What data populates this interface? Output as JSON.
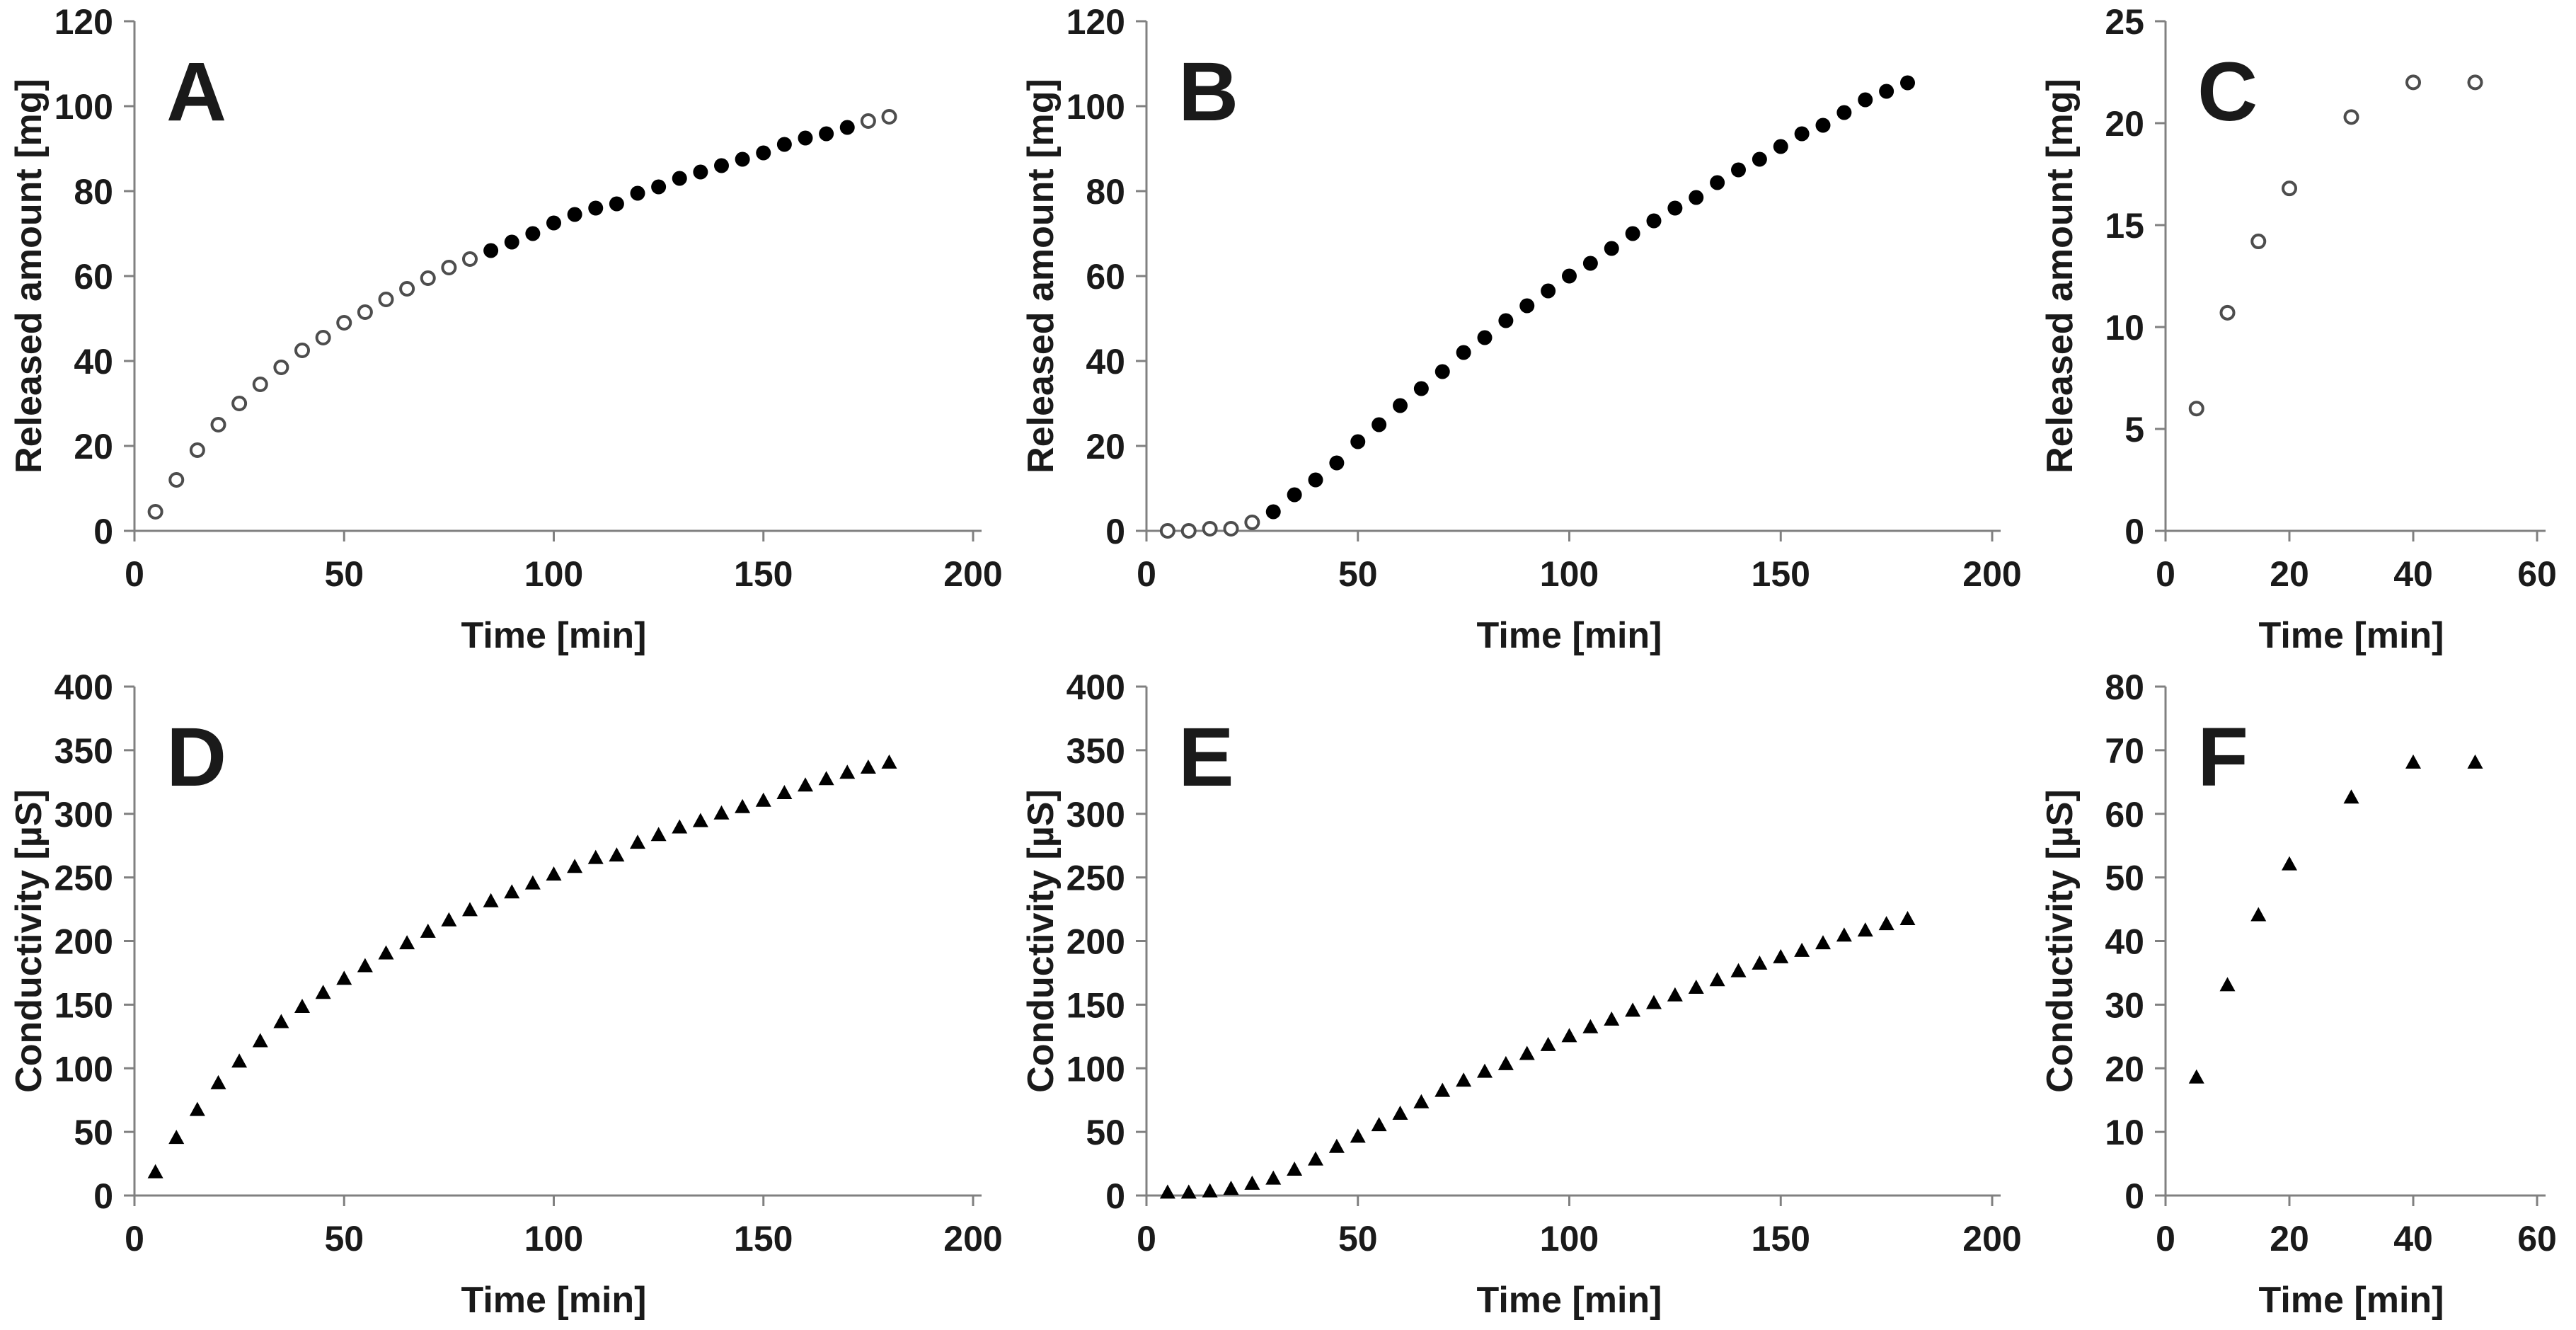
{
  "figure": {
    "name": "six-panel-release-conductivity-figure",
    "background": "#ffffff",
    "marker_color": "#000000",
    "open_marker_stroke": "#4d4d4d",
    "axis_color": "#808080",
    "text_color": "#1a1a1a"
  },
  "chart_data": [
    {
      "type": "scatter",
      "panel_label": "A",
      "title": "",
      "xlabel": "Time [min]",
      "ylabel": "Released amount [mg]",
      "xlim": [
        0,
        200
      ],
      "ylim": [
        0,
        120
      ],
      "xticks": [
        0,
        50,
        100,
        150,
        200
      ],
      "yticks": [
        0,
        20,
        40,
        60,
        80,
        100,
        120
      ],
      "grid": false,
      "legend": "none",
      "series": [
        {
          "name": "released-open-early",
          "marker": "circle-open",
          "x": [
            5,
            10,
            15,
            20,
            25,
            30,
            35,
            40,
            45,
            50,
            55,
            60,
            65,
            70,
            75,
            80
          ],
          "y": [
            4.5,
            12,
            19,
            25,
            30,
            34.5,
            38.5,
            42.5,
            45.5,
            49,
            51.5,
            54.5,
            57,
            59.5,
            62,
            64
          ]
        },
        {
          "name": "released-filled-mid",
          "marker": "circle-filled",
          "x": [
            85,
            90,
            95,
            100,
            105,
            110,
            115,
            120,
            125,
            130,
            135,
            140,
            145,
            150,
            155,
            160,
            165,
            170
          ],
          "y": [
            66,
            68,
            70,
            72.5,
            74.5,
            76,
            77,
            79.5,
            81,
            83,
            84.5,
            86,
            87.5,
            89,
            91,
            92.5,
            93.5,
            95
          ]
        },
        {
          "name": "released-open-late",
          "marker": "circle-open",
          "x": [
            175,
            180
          ],
          "y": [
            96.5,
            97.5
          ]
        }
      ]
    },
    {
      "type": "scatter",
      "panel_label": "B",
      "title": "",
      "xlabel": "Time [min]",
      "ylabel": "Released amount [mg]",
      "xlim": [
        0,
        200
      ],
      "ylim": [
        0,
        120
      ],
      "xticks": [
        0,
        50,
        100,
        150,
        200
      ],
      "yticks": [
        0,
        20,
        40,
        60,
        80,
        100,
        120
      ],
      "grid": false,
      "legend": "none",
      "series": [
        {
          "name": "released-open-lag",
          "marker": "circle-open",
          "x": [
            5,
            10,
            15,
            20,
            25
          ],
          "y": [
            0,
            0,
            0.5,
            0.5,
            2
          ]
        },
        {
          "name": "released-filled-rise",
          "marker": "circle-filled",
          "x": [
            30,
            35,
            40,
            45,
            50,
            55,
            60,
            65,
            70,
            75,
            80,
            85,
            90,
            95,
            100,
            105,
            110,
            115,
            120,
            125,
            130,
            135,
            140,
            145,
            150,
            155,
            160,
            165,
            170,
            175,
            180
          ],
          "y": [
            4.5,
            8.5,
            12,
            16,
            21,
            25,
            29.5,
            33.5,
            37.5,
            42,
            45.5,
            49.5,
            53,
            56.5,
            60,
            63,
            66.5,
            70,
            73,
            76,
            78.5,
            82,
            85,
            87.5,
            90.5,
            93.5,
            95.5,
            98.5,
            101.5,
            103.5,
            105.5
          ]
        }
      ]
    },
    {
      "type": "scatter",
      "panel_label": "C",
      "title": "",
      "xlabel": "Time [min]",
      "ylabel": "Released amount [mg]",
      "xlim": [
        0,
        60
      ],
      "ylim": [
        0,
        25
      ],
      "xticks": [
        0,
        20,
        40,
        60
      ],
      "yticks": [
        0,
        5,
        10,
        15,
        20,
        25
      ],
      "grid": false,
      "legend": "none",
      "series": [
        {
          "name": "released-open-fast",
          "marker": "circle-open",
          "x": [
            5,
            10,
            15,
            20,
            30,
            40,
            50
          ],
          "y": [
            6,
            10.7,
            14.2,
            16.8,
            20.3,
            22,
            22
          ]
        }
      ]
    },
    {
      "type": "scatter",
      "panel_label": "D",
      "title": "",
      "xlabel": "Time [min]",
      "ylabel": "Conductivity [µS]",
      "xlim": [
        0,
        200
      ],
      "ylim": [
        0,
        400
      ],
      "xticks": [
        0,
        50,
        100,
        150,
        200
      ],
      "yticks": [
        0,
        50,
        100,
        150,
        200,
        250,
        300,
        350,
        400
      ],
      "grid": false,
      "legend": "none",
      "series": [
        {
          "name": "conductivity-triangles",
          "marker": "triangle-filled",
          "x": [
            5,
            10,
            15,
            20,
            25,
            30,
            35,
            40,
            45,
            50,
            55,
            60,
            65,
            70,
            75,
            80,
            85,
            90,
            95,
            100,
            105,
            110,
            115,
            120,
            125,
            130,
            135,
            140,
            145,
            150,
            155,
            160,
            165,
            170,
            175,
            180
          ],
          "y": [
            18,
            45,
            67,
            88,
            105,
            121,
            136,
            148,
            159,
            170,
            180,
            190,
            198,
            207,
            216,
            224,
            231,
            238,
            245,
            252,
            258,
            265,
            267,
            277,
            283,
            289,
            294,
            300,
            305,
            310,
            316,
            322,
            327,
            332,
            336,
            340
          ]
        }
      ]
    },
    {
      "type": "scatter",
      "panel_label": "E",
      "title": "",
      "xlabel": "Time [min]",
      "ylabel": "Conductivity [µS]",
      "xlim": [
        0,
        200
      ],
      "ylim": [
        0,
        400
      ],
      "xticks": [
        0,
        50,
        100,
        150,
        200
      ],
      "yticks": [
        0,
        50,
        100,
        150,
        200,
        250,
        300,
        350,
        400
      ],
      "grid": false,
      "legend": "none",
      "series": [
        {
          "name": "conductivity-triangles-sigmoid",
          "marker": "triangle-filled",
          "x": [
            5,
            10,
            15,
            20,
            25,
            30,
            35,
            40,
            45,
            50,
            55,
            60,
            65,
            70,
            75,
            80,
            85,
            90,
            95,
            100,
            105,
            110,
            115,
            120,
            125,
            130,
            135,
            140,
            145,
            150,
            155,
            160,
            165,
            170,
            175,
            180
          ],
          "y": [
            2,
            2,
            3,
            5,
            9,
            13,
            20,
            28,
            38,
            46,
            55,
            64,
            73,
            82,
            90,
            97,
            103,
            111,
            118,
            125,
            132,
            138,
            145,
            151,
            157,
            163,
            169,
            176,
            182,
            187,
            192,
            198,
            204,
            208,
            213,
            217
          ]
        }
      ]
    },
    {
      "type": "scatter",
      "panel_label": "F",
      "title": "",
      "xlabel": "Time [min]",
      "ylabel": "Conductivity [µS]",
      "xlim": [
        0,
        60
      ],
      "ylim": [
        0,
        80
      ],
      "xticks": [
        0,
        20,
        40,
        60
      ],
      "yticks": [
        0,
        10,
        20,
        30,
        40,
        50,
        60,
        70,
        80
      ],
      "grid": false,
      "legend": "none",
      "series": [
        {
          "name": "conductivity-triangles-fast",
          "marker": "triangle-filled",
          "x": [
            5,
            10,
            15,
            20,
            30,
            40,
            50
          ],
          "y": [
            18.5,
            33,
            44,
            52,
            62.5,
            68,
            68
          ]
        }
      ]
    }
  ]
}
